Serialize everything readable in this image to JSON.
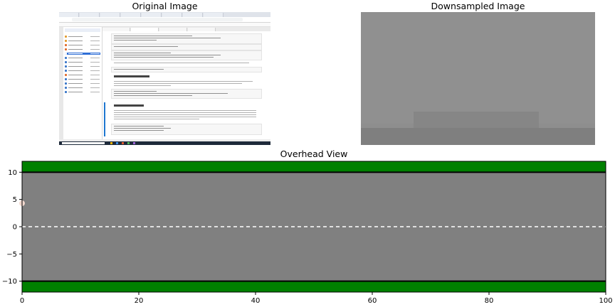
{
  "titles": {
    "original": "Original Image",
    "downsampled": "Downsampled Image",
    "overhead": "Overhead View"
  },
  "colors": {
    "grass": "#008000",
    "road": "#808080",
    "lane_marking": "#ffffff",
    "road_edge": "#000000",
    "vehicle": "#f2d9cf"
  },
  "chart_data": [
    {
      "type": "map",
      "title": "Overhead View",
      "xlabel": "",
      "ylabel": "",
      "xlim": [
        0,
        100
      ],
      "ylim": [
        -12,
        12
      ],
      "x_ticks": [
        0,
        20,
        40,
        60,
        80,
        100
      ],
      "y_ticks": [
        -10,
        -5,
        0,
        5,
        10
      ],
      "grass_top": [
        10,
        12
      ],
      "grass_bottom": [
        -12,
        -10
      ],
      "road": [
        -10,
        10
      ],
      "road_edges": [
        10,
        -10
      ],
      "center_line_y": 0,
      "vehicle": {
        "x": 0,
        "y": 4.3
      }
    }
  ]
}
